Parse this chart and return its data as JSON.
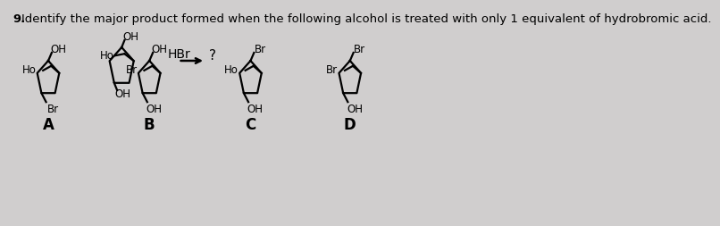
{
  "background_color": "#d0cece",
  "question_number": "9.",
  "question_text": "Identify the major product formed when the following alcohol is treated with only 1 equivalent of hydrobromic acid.",
  "title_fontsize": 9.5,
  "label_fontsize": 12,
  "bg_top": "#d0cece",
  "bg_bottom": "#c8c8c8"
}
